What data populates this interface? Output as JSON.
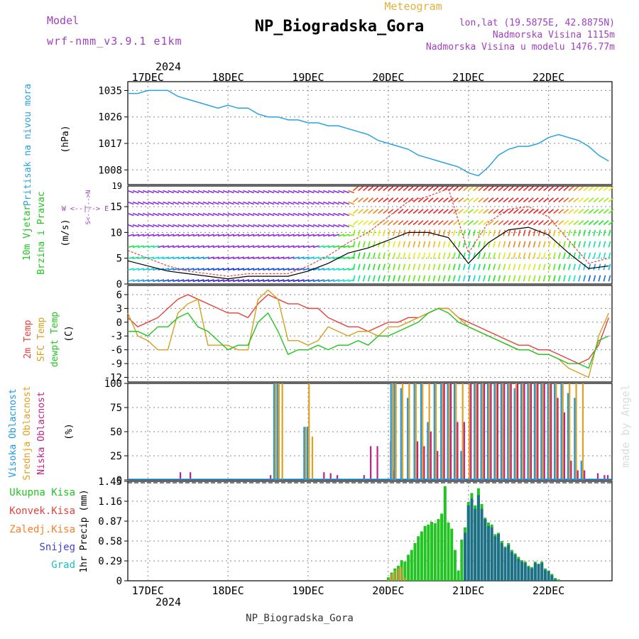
{
  "header": {
    "model_label": "Model",
    "model_name": "wrf-nmm_v3.9.1 e1km",
    "title": "NP_Biogradska_Gora",
    "subtitle": "Meteogram",
    "coords": "lon,lat (19.5875E, 42.8875N)",
    "elevation": "Nadmorska Visina 1115m",
    "model_elevation": "Nadmorska Visina u modelu 1476.77m",
    "footer_name": "NP_Biogradska_Gora",
    "credit": "made by Angel"
  },
  "colors": {
    "pressure": "#29a3e0",
    "temp2m": "#e8403a",
    "sfc": "#d4a020",
    "dewpt": "#22c422",
    "cloud_high": "#1e96e6",
    "cloud_mid": "#e0a020",
    "cloud_low": "#c0208a",
    "precip_total": "#22c422",
    "precip_conv": "#e8403a",
    "precip_frz": "#ff7f27",
    "precip_snow": "#4040e0",
    "precip_graupel": "#20c0c0",
    "wind_dir_label": "#a040c0"
  },
  "chart_data": [
    {
      "id": "pressure",
      "type": "line",
      "title": "Pritisak na nivou mora",
      "ylabel": "(hPa)",
      "ylim": [
        1003,
        1038
      ],
      "yticks": [
        1008,
        1017,
        1026,
        1035
      ],
      "x_start_label": "2024",
      "date_ticks": [
        "17DEC",
        "18DEC",
        "19DEC",
        "20DEC",
        "21DEC",
        "22DEC"
      ],
      "x_hours": [
        0,
        3,
        6,
        9,
        12,
        15,
        18,
        21,
        24,
        27,
        30,
        33,
        36,
        39,
        42,
        45,
        48,
        51,
        54,
        57,
        60,
        63,
        66,
        69,
        72,
        75,
        78,
        81,
        84,
        87,
        90,
        93,
        96,
        99,
        102,
        105,
        108,
        111,
        114,
        117,
        120,
        123,
        126,
        129,
        132,
        135,
        138,
        141,
        144
      ],
      "values": [
        1034,
        1034,
        1035,
        1035,
        1035,
        1033,
        1032,
        1031,
        1030,
        1029,
        1030,
        1029,
        1029,
        1027,
        1026,
        1026,
        1025,
        1025,
        1024,
        1024,
        1023,
        1023,
        1022,
        1021,
        1020,
        1018,
        1017,
        1016,
        1015,
        1013,
        1012,
        1011,
        1010,
        1009,
        1007,
        1006,
        1009,
        1013,
        1015,
        1016,
        1016,
        1017,
        1019,
        1020,
        1019,
        1018,
        1016,
        1013,
        1011
      ],
      "grid": true
    },
    {
      "id": "wind",
      "type": "line",
      "title": "10m Vjetar",
      "title2": "Brzina i Pravac",
      "ylabel": "(m/s)",
      "dir_label": "W <--|--> E",
      "dir_label_v": "S<--|-->N",
      "ylim": [
        0,
        19
      ],
      "yticks": [
        0,
        5,
        10,
        15
      ],
      "top_tick": "19",
      "x_hours": [
        0,
        6,
        12,
        18,
        24,
        30,
        36,
        42,
        48,
        54,
        60,
        66,
        72,
        78,
        84,
        90,
        96,
        102,
        108,
        114,
        120,
        126,
        132,
        138,
        144
      ],
      "series": [
        {
          "name": "speed",
          "values": [
            4.5,
            3.5,
            2.5,
            2.0,
            1.5,
            1.0,
            1.5,
            1.5,
            1.5,
            2.5,
            4.0,
            6.0,
            7.0,
            8.5,
            10.0,
            10.0,
            9.0,
            4.0,
            8.0,
            10.5,
            11.0,
            9.5,
            6.0,
            3.0,
            3.5
          ]
        },
        {
          "name": "gust",
          "values": [
            6.5,
            5.0,
            3.5,
            2.5,
            2.0,
            1.5,
            2.0,
            2.0,
            2.0,
            3.5,
            5.5,
            8.0,
            10.0,
            13.0,
            16.0,
            17.0,
            18.5,
            6.0,
            12.0,
            14.5,
            15.0,
            13.0,
            8.5,
            4.0,
            5.0
          ]
        }
      ],
      "grid": true
    },
    {
      "id": "temperature",
      "type": "line",
      "title": "2m Temp",
      "title2": "SFC Temp",
      "title3": "dewpt Temp",
      "ylabel": "(C)",
      "ylim": [
        -13,
        8
      ],
      "yticks": [
        -12,
        -9,
        -6,
        -3,
        0,
        3,
        6
      ],
      "x_hours": [
        0,
        3,
        6,
        9,
        12,
        15,
        18,
        21,
        24,
        27,
        30,
        33,
        36,
        39,
        42,
        45,
        48,
        51,
        54,
        57,
        60,
        63,
        66,
        69,
        72,
        75,
        78,
        81,
        84,
        87,
        90,
        93,
        96,
        99,
        102,
        105,
        108,
        111,
        114,
        117,
        120,
        123,
        126,
        129,
        132,
        135,
        138,
        141,
        144
      ],
      "series": [
        {
          "name": "2m Temp",
          "values": [
            1,
            -1,
            0,
            1,
            3,
            5,
            6,
            5,
            4,
            3,
            2,
            2,
            1,
            4,
            6,
            5,
            4,
            4,
            3,
            3,
            1,
            0,
            -1,
            -1,
            -2,
            -1,
            0,
            0,
            1,
            1,
            2,
            3,
            3,
            1,
            0,
            -1,
            -2,
            -3,
            -4,
            -5,
            -5,
            -6,
            -6,
            -7,
            -8,
            -9,
            -8,
            -5,
            1
          ]
        },
        {
          "name": "SFC Temp",
          "values": [
            2,
            -3,
            -4,
            -6,
            -6,
            2,
            4,
            5,
            -5,
            -5,
            -5,
            -6,
            -6,
            5,
            7,
            5,
            -4,
            -4,
            -5,
            -4,
            -1,
            -2,
            -3,
            -2,
            -2,
            -3,
            -1,
            -1,
            0,
            1,
            2,
            3,
            3,
            1,
            -1,
            -2,
            -3,
            -4,
            -5,
            -6,
            -6,
            -7,
            -7,
            -8,
            -10,
            -11,
            -12,
            -3,
            2
          ]
        },
        {
          "name": "dewpt Temp",
          "values": [
            -2,
            -2,
            -3,
            -1,
            -1,
            1,
            2,
            -1,
            -2,
            -4,
            -6,
            -5,
            -5,
            0,
            2,
            -2,
            -7,
            -6,
            -6,
            -5,
            -6,
            -5,
            -5,
            -4,
            -5,
            -3,
            -3,
            -2,
            -1,
            0,
            2,
            3,
            2,
            0,
            -1,
            -2,
            -3,
            -4,
            -5,
            -6,
            -6,
            -7,
            -7,
            -8,
            -9,
            -9,
            -10,
            -4,
            -3
          ]
        }
      ],
      "grid": true
    },
    {
      "id": "clouds",
      "type": "bar",
      "title": "Visoka Oblacnost",
      "title2": "Srednja Oblacnost",
      "title3": "Niska Oblacnost",
      "ylabel": "(%)",
      "ylim": [
        0,
        100
      ],
      "yticks": [
        0,
        25,
        50,
        75,
        100
      ],
      "x_hours": [
        15,
        18,
        42,
        44,
        45,
        46,
        53,
        54,
        55,
        58,
        60,
        62,
        70,
        72,
        74,
        78,
        79,
        80,
        82,
        84,
        86,
        88,
        90,
        92,
        94,
        96,
        98,
        100,
        102,
        104,
        106,
        108,
        110,
        112,
        114,
        116,
        118,
        120,
        122,
        124,
        126,
        128,
        130,
        132,
        134,
        136,
        140,
        142,
        143
      ],
      "series": [
        {
          "name": "Visoka Oblacnost",
          "values": [
            0,
            0,
            0,
            100,
            100,
            0,
            55,
            55,
            0,
            0,
            0,
            0,
            0,
            0,
            0,
            0,
            100,
            100,
            95,
            85,
            100,
            100,
            60,
            100,
            100,
            100,
            100,
            30,
            0,
            100,
            100,
            100,
            100,
            100,
            100,
            95,
            100,
            100,
            100,
            100,
            100,
            100,
            100,
            90,
            85,
            20,
            0,
            0,
            0
          ]
        },
        {
          "name": "Srednja Oblacnost",
          "values": [
            0,
            0,
            0,
            100,
            100,
            100,
            55,
            100,
            45,
            0,
            0,
            0,
            0,
            0,
            0,
            0,
            100,
            100,
            100,
            100,
            100,
            100,
            100,
            100,
            100,
            100,
            100,
            100,
            100,
            100,
            100,
            100,
            100,
            100,
            100,
            100,
            100,
            100,
            100,
            100,
            100,
            100,
            100,
            100,
            100,
            100,
            0,
            0,
            0
          ]
        },
        {
          "name": "Niska Oblacnost",
          "values": [
            8,
            8,
            5,
            0,
            0,
            0,
            0,
            0,
            0,
            8,
            7,
            5,
            5,
            35,
            35,
            40,
            10,
            0,
            0,
            0,
            40,
            35,
            50,
            30,
            100,
            100,
            60,
            60,
            100,
            100,
            100,
            100,
            100,
            100,
            100,
            100,
            100,
            100,
            100,
            100,
            100,
            85,
            70,
            20,
            10,
            10,
            7,
            5,
            5
          ]
        }
      ],
      "grid": true
    },
    {
      "id": "precip",
      "type": "bar",
      "title": "Ukupna Kisa",
      "title2": "Konvek.Kisa",
      "title3": "Zaledj.Kisa",
      "title4": "Snijeg",
      "title5": "Grad",
      "ylabel": "1hr Precip (mm)",
      "ylim": [
        0,
        1.45
      ],
      "yticks": [
        0,
        0.29,
        0.58,
        0.87,
        1.16,
        1.45
      ],
      "x_hours": [
        78,
        79,
        80,
        81,
        82,
        83,
        84,
        85,
        86,
        87,
        88,
        89,
        90,
        91,
        92,
        93,
        94,
        95,
        96,
        97,
        98,
        99,
        100,
        101,
        102,
        103,
        104,
        105,
        106,
        107,
        108,
        109,
        110,
        111,
        112,
        113,
        114,
        115,
        116,
        117,
        118,
        119,
        120,
        121,
        122,
        123,
        124,
        125,
        126,
        127,
        128,
        129
      ],
      "series": [
        {
          "name": "Ukupna Kisa",
          "values": [
            0.05,
            0.12,
            0.18,
            0.22,
            0.3,
            0.28,
            0.38,
            0.45,
            0.55,
            0.65,
            0.72,
            0.8,
            0.82,
            0.86,
            0.84,
            0.9,
            0.98,
            1.38,
            0.85,
            0.76,
            0.45,
            0.15,
            0.6,
            0.78,
            1.15,
            1.28,
            1.1,
            1.35,
            1.12,
            0.92,
            0.85,
            0.82,
            0.68,
            0.7,
            0.58,
            0.5,
            0.55,
            0.45,
            0.4,
            0.35,
            0.3,
            0.28,
            0.22,
            0.2,
            0.28,
            0.25,
            0.28,
            0.18,
            0.15,
            0.1,
            0.04,
            0.02
          ]
        },
        {
          "name": "Konvek.Kisa",
          "values": [
            0.02,
            0.1,
            0.15,
            0.18,
            0.2,
            0.05,
            0.0,
            0.0,
            0.0,
            0.0,
            0.0,
            0.0,
            0.0,
            0.0,
            0.0,
            0.0,
            0.0,
            0.0,
            0.0,
            0.0,
            0.0,
            0.0,
            0.0,
            0.0,
            0.0,
            0.0,
            0.0,
            0.0,
            0.0,
            0.0,
            0.0,
            0.0,
            0.0,
            0.0,
            0.0,
            0.0,
            0.0,
            0.0,
            0.0,
            0.0,
            0.0,
            0.0,
            0.0,
            0.0,
            0.0,
            0.0,
            0.0,
            0.0,
            0.0,
            0.0,
            0.0,
            0.0
          ]
        },
        {
          "name": "Snijeg",
          "values": [
            0,
            0,
            0,
            0,
            0,
            0,
            0,
            0,
            0,
            0,
            0,
            0,
            0,
            0,
            0,
            0,
            0,
            0,
            0,
            0,
            0,
            0,
            0,
            0.7,
            1.1,
            1.2,
            1.05,
            1.25,
            1.05,
            0.9,
            0.8,
            0.78,
            0.65,
            0.68,
            0.55,
            0.48,
            0.52,
            0.42,
            0.38,
            0.32,
            0.28,
            0.26,
            0.2,
            0.18,
            0.26,
            0.24,
            0.26,
            0.16,
            0.14,
            0.08,
            0.02,
            0
          ]
        }
      ],
      "grid": true
    }
  ]
}
